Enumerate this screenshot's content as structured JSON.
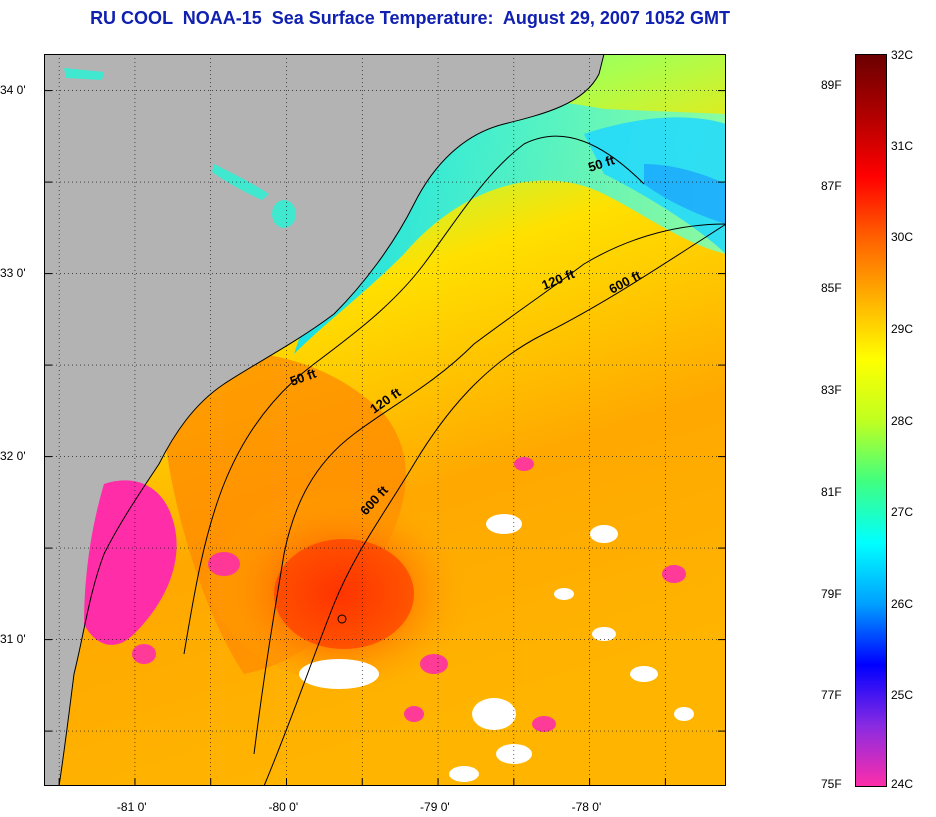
{
  "title": "RU COOL  NOAA-15  Sea Surface Temperature:  August 29, 2007 1052 GMT",
  "map": {
    "lat_labels": [
      {
        "value": 34.0,
        "label": "34 0'"
      },
      {
        "value": 33.0,
        "label": "33 0'"
      },
      {
        "value": 32.0,
        "label": "32 0'"
      },
      {
        "value": 31.0,
        "label": "31 0'"
      }
    ],
    "lon_labels": [
      {
        "value": -81.0,
        "label": "-81 0'"
      },
      {
        "value": -80.0,
        "label": "-80 0'"
      },
      {
        "value": -79.0,
        "label": "-79 0'"
      },
      {
        "value": -78.0,
        "label": "-78 0'"
      }
    ],
    "lon_range": [
      -81.6,
      -77.1
    ],
    "lat_range": [
      30.2,
      34.2
    ],
    "isobaths": [
      {
        "label": "50 ft"
      },
      {
        "label": "50 ft"
      },
      {
        "label": "120 ft"
      },
      {
        "label": "120 ft"
      },
      {
        "label": "600 ft"
      },
      {
        "label": "600 ft"
      }
    ],
    "colors": {
      "land": "#b3b3b3",
      "cloud": "#ffffff",
      "coast": "#000000"
    }
  },
  "colorbar": {
    "celsius": [
      "32C",
      "31C",
      "30C",
      "29C",
      "28C",
      "27C",
      "26C",
      "25C",
      "24C"
    ],
    "fahrenheit": [
      "89F",
      "87F",
      "85F",
      "83F",
      "81F",
      "79F",
      "77F",
      "75F"
    ],
    "range_c": [
      24,
      32
    ],
    "colors": [
      "#ff2ea8",
      "#8a2be2",
      "#0000ff",
      "#00a0ff",
      "#00ffff",
      "#40ff80",
      "#c0ff20",
      "#ffff00",
      "#ffb000",
      "#ff6000",
      "#ff0000",
      "#b00000",
      "#6a0000"
    ]
  }
}
